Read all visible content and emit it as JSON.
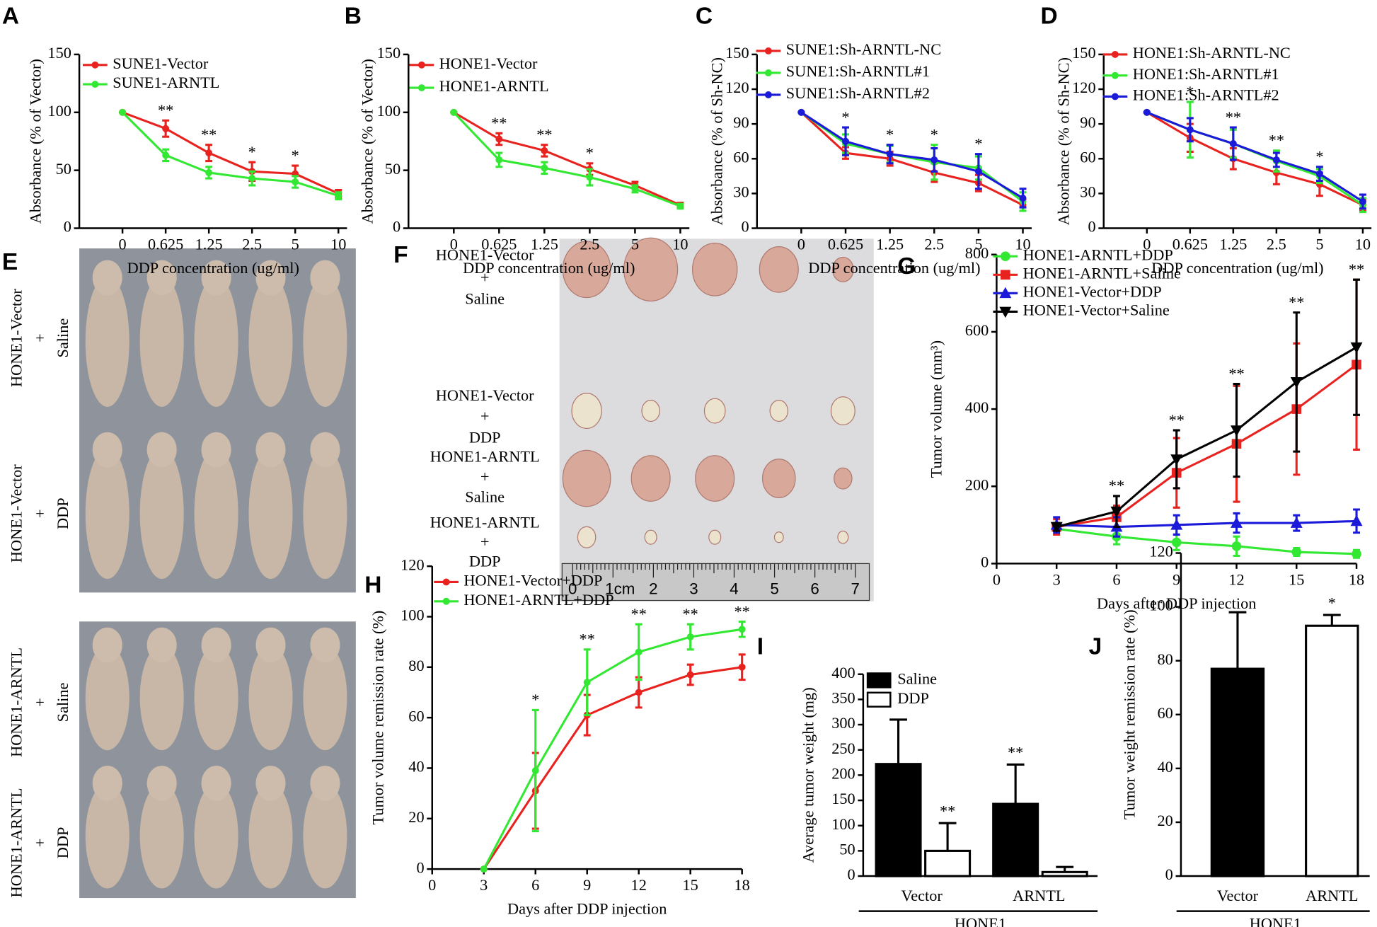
{
  "chart_data": [
    {
      "panel": "A",
      "type": "line",
      "x_label": "DDP concentration (ug/ml)",
      "y_label": "Absorbance (% of Vector)",
      "categories": [
        "0",
        "0.625",
        "1.25",
        "2.5",
        "5",
        "10"
      ],
      "ylim": [
        0,
        150
      ],
      "yticks": [
        0,
        50,
        100,
        150
      ],
      "series": [
        {
          "name": "SUNE1-Vector",
          "color": "#e8231f",
          "values": [
            100,
            86,
            65,
            49,
            47,
            30
          ],
          "errors": [
            0,
            7,
            7,
            8,
            7,
            3
          ]
        },
        {
          "name": "SUNE1-ARNTL",
          "color": "#33e833",
          "values": [
            100,
            63,
            48,
            43,
            40,
            28
          ],
          "errors": [
            0,
            5,
            5,
            6,
            5,
            3
          ]
        }
      ],
      "annotations": [
        null,
        "**",
        "**",
        "*",
        "*",
        null
      ]
    },
    {
      "panel": "B",
      "type": "line",
      "x_label": "DDP concentration (ug/ml)",
      "y_label": "Absorbance (% of Vector)",
      "categories": [
        "0",
        "0.625",
        "1.25",
        "2.5",
        "5",
        "10"
      ],
      "ylim": [
        0,
        150
      ],
      "yticks": [
        0,
        50,
        100,
        150
      ],
      "series": [
        {
          "name": "HONE1-Vector",
          "color": "#e8231f",
          "values": [
            100,
            77,
            67,
            51,
            37,
            20
          ],
          "errors": [
            0,
            5,
            5,
            5,
            3,
            2
          ]
        },
        {
          "name": "HONE1-ARNTL",
          "color": "#33e833",
          "values": [
            100,
            59,
            52,
            44,
            34,
            19
          ],
          "errors": [
            0,
            6,
            5,
            7,
            3,
            2
          ]
        }
      ],
      "annotations": [
        null,
        "**",
        "**",
        "*",
        null,
        null
      ]
    },
    {
      "panel": "C",
      "type": "line",
      "x_label": "DDP concentration (ug/ml)",
      "y_label": "Absorbance (% of Sh-NC)",
      "categories": [
        "0",
        "0.625",
        "1.25",
        "2.5",
        "5",
        "10"
      ],
      "ylim": [
        0,
        150
      ],
      "yticks": [
        0,
        30,
        60,
        90,
        120,
        150
      ],
      "series": [
        {
          "name": "SUNE1:Sh-ARNTL-NC",
          "color": "#e8231f",
          "values": [
            100,
            65,
            60,
            48,
            39,
            20
          ],
          "errors": [
            0,
            5,
            6,
            8,
            7,
            5
          ]
        },
        {
          "name": "SUNE1:Sh-ARNTL#1",
          "color": "#33e833",
          "values": [
            100,
            73,
            64,
            57,
            52,
            23
          ],
          "errors": [
            0,
            8,
            7,
            15,
            10,
            8
          ]
        },
        {
          "name": "SUNE1:Sh-ARNTL#2",
          "color": "#1a1ad8",
          "values": [
            100,
            75,
            64,
            59,
            49,
            26
          ],
          "errors": [
            0,
            12,
            8,
            10,
            15,
            8
          ]
        }
      ],
      "annotations": [
        null,
        "*",
        "*",
        "*",
        "*",
        null
      ]
    },
    {
      "panel": "D",
      "type": "line",
      "x_label": "DDP concentration (ug/ml)",
      "y_label": "Absorbance (% of Sh-NC)",
      "categories": [
        "0",
        "0.625",
        "1.25",
        "2.5",
        "5",
        "10"
      ],
      "ylim": [
        0,
        150
      ],
      "yticks": [
        0,
        30,
        60,
        90,
        120,
        150
      ],
      "series": [
        {
          "name": "HONE1:Sh-ARNTL-NC",
          "color": "#e8231f",
          "values": [
            100,
            78,
            60,
            48,
            38,
            20
          ],
          "errors": [
            0,
            12,
            9,
            10,
            10,
            5
          ]
        },
        {
          "name": "HONE1:Sh-ARNTL#1",
          "color": "#33e833",
          "values": [
            100,
            85,
            73,
            58,
            45,
            20
          ],
          "errors": [
            0,
            24,
            12,
            9,
            6,
            6
          ]
        },
        {
          "name": "HONE1:Sh-ARNTL#2",
          "color": "#1a1ad8",
          "values": [
            100,
            85,
            73,
            59,
            47,
            23
          ],
          "errors": [
            0,
            10,
            14,
            6,
            6,
            6
          ]
        }
      ],
      "annotations": [
        null,
        "*",
        "**",
        "**",
        "*",
        null
      ]
    },
    {
      "panel": "G",
      "type": "line",
      "x_label": "Days after DDP injection",
      "y_label": "Tumor volume (mm³)",
      "x": [
        3,
        6,
        9,
        12,
        15,
        18
      ],
      "xlim": [
        0,
        18
      ],
      "xticks": [
        0,
        3,
        6,
        9,
        12,
        15,
        18
      ],
      "ylim": [
        0,
        800
      ],
      "yticks": [
        0,
        200,
        400,
        600,
        800
      ],
      "series": [
        {
          "name": "HONE1-ARNTL+DDP",
          "color": "#33e833",
          "marker": "circle",
          "values": [
            90,
            70,
            55,
            45,
            30,
            25
          ],
          "errors": [
            15,
            20,
            20,
            25,
            10,
            10
          ]
        },
        {
          "name": "HONE1-ARNTL+Saline",
          "color": "#e8231f",
          "marker": "square",
          "values": [
            95,
            120,
            235,
            310,
            400,
            515
          ],
          "errors": [
            20,
            30,
            90,
            150,
            170,
            220
          ]
        },
        {
          "name": "HONE1-Vector+DDP",
          "color": "#1a1ad8",
          "marker": "triangle",
          "values": [
            100,
            95,
            100,
            105,
            105,
            110
          ],
          "errors": [
            20,
            25,
            25,
            25,
            20,
            30
          ]
        },
        {
          "name": "HONE1-Vector+Saline",
          "color": "#000000",
          "marker": "triangle-down",
          "values": [
            95,
            135,
            270,
            345,
            470,
            560
          ],
          "errors": [
            10,
            40,
            75,
            120,
            180,
            175
          ]
        }
      ],
      "annotations": [
        null,
        "**",
        "**",
        "**",
        "**",
        "**"
      ]
    },
    {
      "panel": "H",
      "type": "line",
      "x_label": "Days after DDP injection",
      "y_label": "Tumor volume remission rate (%)",
      "x": [
        3,
        6,
        9,
        12,
        15,
        18
      ],
      "xlim": [
        0,
        18
      ],
      "xticks": [
        0,
        3,
        6,
        9,
        12,
        15,
        18
      ],
      "ylim": [
        0,
        120
      ],
      "yticks": [
        0,
        20,
        40,
        60,
        80,
        100,
        120
      ],
      "series": [
        {
          "name": "HONE1-Vector+DDP",
          "color": "#e8231f",
          "values": [
            0,
            31,
            61,
            70,
            77,
            80
          ],
          "errors": [
            0,
            15,
            8,
            6,
            4,
            5
          ]
        },
        {
          "name": "HONE1-ARNTL+DDP",
          "color": "#33e833",
          "values": [
            0,
            39,
            74,
            86,
            92,
            95
          ],
          "errors": [
            0,
            24,
            13,
            11,
            5,
            3
          ]
        }
      ],
      "annotations": [
        null,
        "*",
        "**",
        "**",
        "**",
        "**"
      ]
    },
    {
      "panel": "I",
      "type": "bar",
      "y_label": "Average tumor weight (mg)",
      "group_label": "HONE1",
      "categories": [
        "Vector",
        "ARNTL"
      ],
      "ylim": [
        0,
        400
      ],
      "yticks": [
        0,
        50,
        100,
        150,
        200,
        250,
        300,
        350,
        400
      ],
      "series": [
        {
          "name": "Saline",
          "color": "#000000",
          "values": [
            222,
            143
          ],
          "errors": [
            88,
            78
          ],
          "annotations": [
            null,
            "**"
          ]
        },
        {
          "name": "DDP",
          "color": "#ffffff",
          "values": [
            50,
            8
          ],
          "errors": [
            55,
            10
          ],
          "annotations": [
            "**",
            null
          ]
        }
      ]
    },
    {
      "panel": "J",
      "type": "bar",
      "y_label": "Tumor weight remission rate (%)",
      "group_label": "HONE1",
      "categories": [
        "Vector",
        "ARNTL"
      ],
      "ylim": [
        0,
        120
      ],
      "yticks": [
        0,
        20,
        40,
        60,
        80,
        100,
        120
      ],
      "series": [
        {
          "colors": [
            "#000000",
            "#ffffff"
          ],
          "values": [
            77,
            93
          ],
          "errors": [
            21,
            4
          ],
          "annotations": [
            null,
            "*"
          ]
        }
      ]
    }
  ],
  "photos": [
    {
      "panel": "E",
      "groups": [
        [
          "HONE1-Vector",
          "+",
          "Saline"
        ],
        [
          "HONE1-Vector",
          "+",
          "DDP"
        ],
        [
          "HONE1-ARNTL",
          "+",
          "Saline"
        ],
        [
          "HONE1-ARNTL",
          "+",
          "DDP"
        ]
      ]
    },
    {
      "panel": "F",
      "groups": [
        [
          "HONE1-Vector",
          "+",
          "Saline"
        ],
        [
          "HONE1-Vector",
          "+",
          "DDP"
        ],
        [
          "HONE1-ARNTL",
          "+",
          "Saline"
        ],
        [
          "HONE1-ARNTL",
          "+",
          "DDP"
        ]
      ],
      "ruler": [
        "0",
        "1cm",
        "2",
        "3",
        "4",
        "5",
        "6",
        "7"
      ]
    }
  ]
}
